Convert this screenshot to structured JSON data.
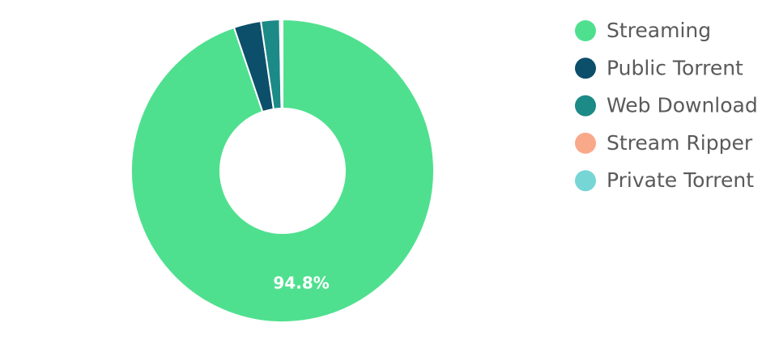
{
  "chart_data": {
    "type": "donut",
    "categories": [
      "Streaming",
      "Public Torrent",
      "Web Download",
      "Stream Ripper",
      "Private Torrent"
    ],
    "values": [
      94.8,
      2.9,
      2.0,
      0.2,
      0.1
    ],
    "value_labels": [
      "94.8%",
      null,
      null,
      null,
      null
    ],
    "colors": [
      "#4fe08f",
      "#0c4f6a",
      "#1c8a86",
      "#f9a98a",
      "#76d6d6"
    ],
    "legend": "right"
  }
}
